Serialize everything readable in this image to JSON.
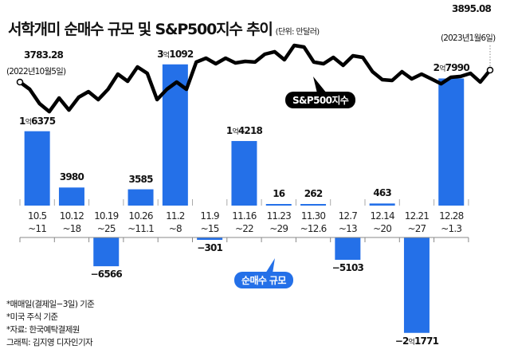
{
  "title": "서학개미 순매수 규모 및 S&P500지수 추이",
  "unit": "(단위: 만달러)",
  "colors": {
    "bar": "#2470e8",
    "line": "#000000",
    "badge_bar": "#2470e8",
    "badge_line": "#000000"
  },
  "chart_data": [
    {
      "type": "bar",
      "name": "순매수 규모",
      "legend_label": "순매수 규모",
      "unit": "만달러",
      "categories": [
        {
          "line1": "10.5",
          "line2": "~11"
        },
        {
          "line1": "10.12",
          "line2": "~18"
        },
        {
          "line1": "10.19",
          "line2": "~25"
        },
        {
          "line1": "10.26",
          "line2": "~11.1"
        },
        {
          "line1": "11.2",
          "line2": "~8"
        },
        {
          "line1": "11.9",
          "line2": "~15"
        },
        {
          "line1": "11.16",
          "line2": "~22"
        },
        {
          "line1": "11.23",
          "line2": "~29"
        },
        {
          "line1": "11.30",
          "line2": "~12.6"
        },
        {
          "line1": "12.7",
          "line2": "~13"
        },
        {
          "line1": "12.14",
          "line2": "~20"
        },
        {
          "line1": "12.21",
          "line2": "~27"
        },
        {
          "line1": "12.28",
          "line2": "~1.3"
        }
      ],
      "values": [
        16375,
        3980,
        -6566,
        3585,
        31092,
        -301,
        14218,
        16,
        262,
        -5103,
        463,
        -21771,
        27990
      ],
      "labels": [
        "1억6375",
        "3980",
        "−6566",
        "3585",
        "3억1092",
        "−301",
        "1억4218",
        "16",
        "262",
        "−5103",
        "463",
        "−2억1771",
        "2억7990"
      ]
    },
    {
      "type": "line",
      "name": "S&P500지수",
      "legend_label": "S&P500지수",
      "start": {
        "value": "3783.28",
        "date": "(2022년10월5일)"
      },
      "end": {
        "value": "3895.08",
        "date": "(2023년1월6일)"
      },
      "values": [
        3783.28,
        3716,
        3582,
        3507,
        3634,
        3522,
        3642,
        3694,
        3619,
        3716,
        3858,
        3791,
        3925,
        3865,
        3619,
        3716,
        3783,
        3716,
        3970,
        4007,
        3955,
        4007,
        3962,
        3977,
        3970,
        4044,
        4067,
        3992,
        4126,
        4111,
        3970,
        3955,
        4014,
        3940,
        4029,
        4014,
        3880,
        3806,
        3798,
        3880,
        3813,
        3858,
        3813,
        3768,
        3828,
        3836,
        3865,
        3783,
        3895.08
      ]
    }
  ],
  "notes": [
    "*매매일(결제일−3일) 기준",
    "*미국 주식 기준",
    "*자료: 한국예탁결제원",
    "그래픽: 김지영 디자인기자"
  ]
}
